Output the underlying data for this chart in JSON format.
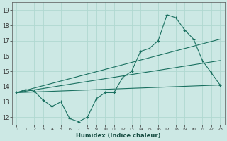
{
  "title": "",
  "xlabel": "Humidex (Indice chaleur)",
  "ylabel": "",
  "bg_color": "#cce8e4",
  "grid_color": "#b0d8d0",
  "line_color": "#1a7060",
  "xlim": [
    -0.5,
    23.5
  ],
  "ylim": [
    11.5,
    19.5
  ],
  "xticks": [
    0,
    1,
    2,
    3,
    4,
    5,
    6,
    7,
    8,
    9,
    10,
    11,
    12,
    13,
    14,
    15,
    16,
    17,
    18,
    19,
    20,
    21,
    22,
    23
  ],
  "yticks": [
    12,
    13,
    14,
    15,
    16,
    17,
    18,
    19
  ],
  "main_line": {
    "x": [
      0,
      1,
      2,
      3,
      4,
      5,
      6,
      7,
      8,
      9,
      10,
      11,
      12,
      13,
      14,
      15,
      16,
      17,
      18,
      19,
      20,
      21,
      22,
      23
    ],
    "y": [
      13.6,
      13.8,
      13.7,
      13.1,
      12.7,
      13.0,
      11.9,
      11.7,
      12.0,
      13.2,
      13.6,
      13.6,
      14.6,
      15.0,
      16.3,
      16.5,
      17.0,
      18.7,
      18.5,
      17.7,
      17.1,
      15.7,
      14.9,
      14.1
    ]
  },
  "flat_line": {
    "x": [
      0,
      23
    ],
    "y": [
      13.6,
      14.1
    ]
  },
  "trend_line1": {
    "x": [
      0,
      23
    ],
    "y": [
      13.6,
      17.1
    ]
  },
  "trend_line2": {
    "x": [
      0,
      23
    ],
    "y": [
      13.6,
      15.7
    ]
  }
}
